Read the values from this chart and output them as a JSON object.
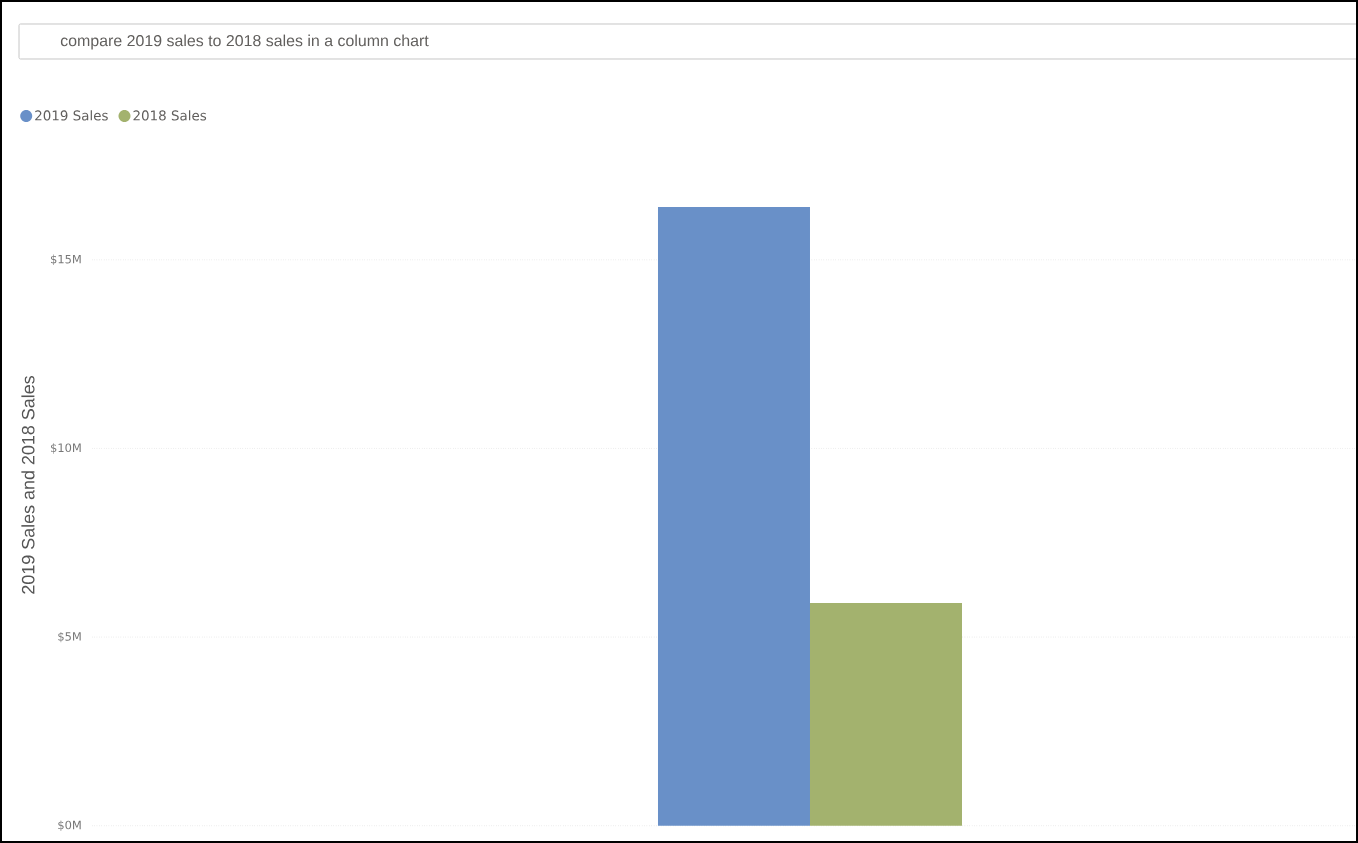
{
  "chart_data": {
    "type": "bar",
    "title": "compare 2019 sales to 2018 sales in a column chart",
    "ylabel": "2019 Sales and 2018 Sales",
    "categories": [
      null
    ],
    "series": [
      {
        "name": "2019 Sales",
        "color": "#6990c8",
        "values": [
          16.4
        ]
      },
      {
        "name": "2018 Sales",
        "color": "#a3b26e",
        "values": [
          5.9
        ]
      }
    ],
    "ylim": [
      0,
      16.4
    ],
    "yticks": [
      {
        "value": 0,
        "label": "$0M"
      },
      {
        "value": 5,
        "label": "$5M"
      },
      {
        "value": 10,
        "label": "$10M"
      },
      {
        "value": 15,
        "label": "$15M"
      }
    ],
    "grid": "y",
    "legend": "top left",
    "tick_labels": "y"
  }
}
